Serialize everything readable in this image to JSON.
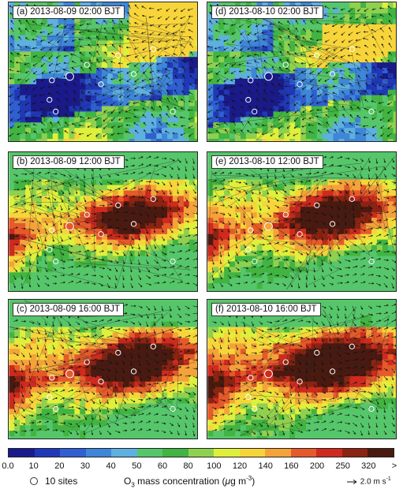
{
  "panels": [
    {
      "label": "(a) 2013-08-09 02:00 BJT",
      "palette": "night"
    },
    {
      "label": "(d) 2013-08-10 02:00 BJT",
      "palette": "night2"
    },
    {
      "label": "(b) 2013-08-09 12:00 BJT",
      "palette": "noon"
    },
    {
      "label": "(e) 2013-08-10 12:00 BJT",
      "palette": "noon2"
    },
    {
      "label": "(c) 2013-08-09 16:00 BJT",
      "palette": "after"
    },
    {
      "label": "(f) 2013-08-10 16:00 BJT",
      "palette": "after2"
    }
  ],
  "colorbar": {
    "colors": [
      "#1a1a8c",
      "#2038b8",
      "#2f5fd0",
      "#3e86d8",
      "#5db0e0",
      "#56c66a",
      "#41b441",
      "#8fd14f",
      "#dff03c",
      "#f7d53a",
      "#f3a33a",
      "#e55a2a",
      "#cf2a1e",
      "#8b2412",
      "#4a1a10"
    ],
    "ticks": [
      "0.0",
      "10",
      "20",
      "30",
      "40",
      "50",
      "60",
      "80",
      "100",
      "120",
      "140",
      "160",
      "200",
      "250",
      "320",
      ">"
    ]
  },
  "legend": {
    "sites_label": "10 sites",
    "quantity_prefix": "O",
    "quantity_sub": "3",
    "quantity_text": " mass concentration (",
    "unit_mu": "μ",
    "unit_text": "g m",
    "unit_exp": "-3",
    "unit_close": ")",
    "vector_value": "2.0 m s",
    "vector_exp": "-1"
  }
}
